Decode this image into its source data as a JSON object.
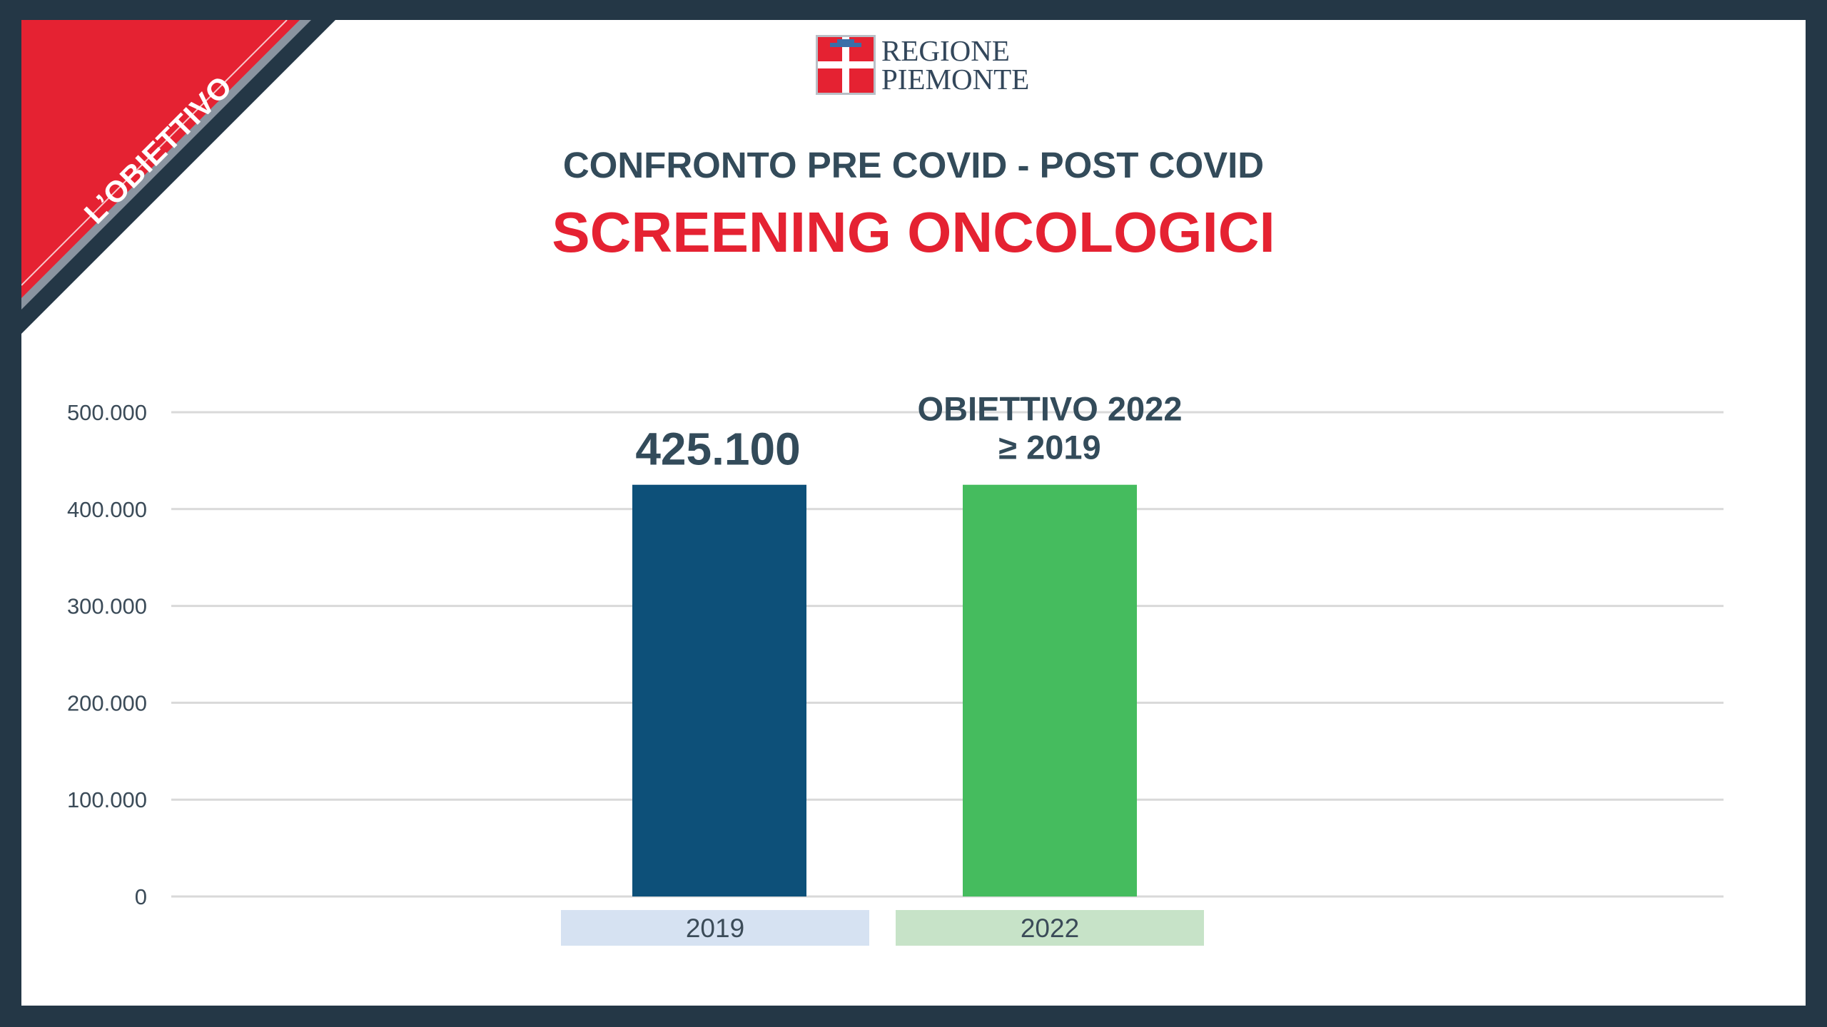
{
  "corner_label": "L’OBIETTIVO",
  "logo": {
    "line1": "REGIONE",
    "line2": "PIEMONTE"
  },
  "title_top": "CONFRONTO PRE COVID - POST COVID",
  "title_main": "SCREENING ONCOLOGICI",
  "colors": {
    "frame": "#243746",
    "accent_red": "#e52232",
    "bar_2019": "#0d5079",
    "bar_2022": "#45bc5e",
    "cat_bg_2019": "#d6e2f2",
    "cat_bg_2022": "#c7e3c8",
    "text_dark": "#334b5a"
  },
  "chart_data": {
    "type": "bar",
    "categories": [
      "2019",
      "2022"
    ],
    "values": [
      425100,
      425100
    ],
    "value_labels": [
      "425.100"
    ],
    "target_label": [
      "OBIETTIVO 2022",
      "≥ 2019"
    ],
    "ylim": [
      0,
      500000
    ],
    "yticks": [
      0,
      100000,
      200000,
      300000,
      400000,
      500000
    ],
    "ytick_labels": [
      "0",
      "100.000",
      "200.000",
      "300.000",
      "400.000",
      "500.000"
    ],
    "grid": true,
    "title": "",
    "xlabel": "",
    "ylabel": ""
  }
}
